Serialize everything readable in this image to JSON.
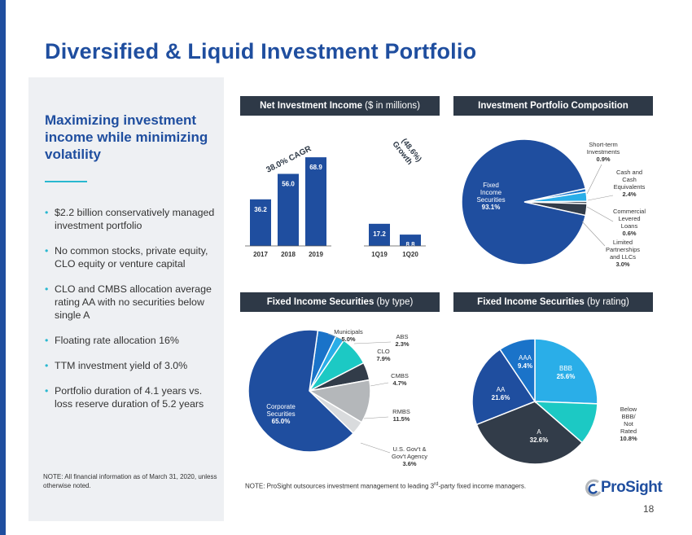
{
  "title": "Diversified & Liquid Investment Portfolio",
  "left_panel": {
    "heading": "Maximizing investment income while minimizing volatility",
    "bullets": [
      "$2.2 billion conservatively managed investment portfolio",
      "No common stocks, private equity, CLO equity or venture capital",
      "CLO and CMBS allocation average rating AA with no securities below single A",
      "Floating rate allocation 16%",
      "TTM investment yield of 3.0%",
      "Portfolio duration of 4.1 years vs. loss reserve duration of 5.2 years"
    ],
    "note": "NOTE:  All financial information as of March 31, 2020, unless otherwise noted."
  },
  "panels": {
    "nii_bold": "Net Investment Income",
    "nii_rest": " ($ in millions)",
    "composition": "Investment Portfolio Composition",
    "fis_type_bold": "Fixed Income  Securities",
    "fis_type_rest": " (by type)",
    "fis_rating_bold": "Fixed Income  Securities",
    "fis_rating_rest": " (by rating)"
  },
  "colors": {
    "navy": "#1f4e9f",
    "dark": "#2e3947",
    "cyan": "#29b8d0",
    "teal": "#1cc9c4",
    "grey": "#b4b7ba",
    "lightgrey": "#d9dbdd",
    "midblue": "#1a73c9",
    "light_blue": "#2aaee8",
    "dark_slate": "#323c49"
  },
  "chart_data": [
    {
      "type": "bar",
      "title": "Net Investment Income ($ in millions)",
      "categories": [
        "2017",
        "2018",
        "2019",
        "1Q19",
        "1Q20"
      ],
      "values": [
        36.2,
        56.0,
        68.9,
        17.2,
        8.8
      ],
      "value_labels": [
        "36.2",
        "56.0",
        "68.9",
        "17.2",
        "8.8"
      ],
      "annotations": [
        "38.0% CAGR",
        "(48.6%) Growth"
      ]
    },
    {
      "type": "pie",
      "title": "Investment Portfolio Composition",
      "slices": [
        {
          "label": "Fixed Income Securities",
          "value": 93.1,
          "pct": "93.1%"
        },
        {
          "label": "Short-term Investments",
          "value": 0.9,
          "pct": "0.9%"
        },
        {
          "label": "Cash and Cash Equivalents",
          "value": 2.4,
          "pct": "2.4%"
        },
        {
          "label": "Commercial Levered Loans",
          "value": 0.6,
          "pct": "0.6%"
        },
        {
          "label": "Limited Partnerships and LLCs",
          "value": 3.0,
          "pct": "3.0%"
        }
      ]
    },
    {
      "type": "pie",
      "title": "Fixed Income Securities (by type)",
      "slices": [
        {
          "label": "Corporate Securities",
          "value": 65.0,
          "pct": "65.0%"
        },
        {
          "label": "Municipals",
          "value": 5.0,
          "pct": "5.0%"
        },
        {
          "label": "ABS",
          "value": 2.3,
          "pct": "2.3%"
        },
        {
          "label": "CLO",
          "value": 7.9,
          "pct": "7.9%"
        },
        {
          "label": "CMBS",
          "value": 4.7,
          "pct": "4.7%"
        },
        {
          "label": "RMBS",
          "value": 11.5,
          "pct": "11.5%"
        },
        {
          "label": "U.S. Gov't & Gov't Agency",
          "value": 3.6,
          "pct": "3.6%"
        }
      ]
    },
    {
      "type": "pie",
      "title": "Fixed Income Securities (by rating)",
      "slices": [
        {
          "label": "BBB",
          "value": 25.6,
          "pct": "25.6%"
        },
        {
          "label": "Below BBB/ Not Rated",
          "value": 10.8,
          "pct": "10.8%"
        },
        {
          "label": "A",
          "value": 32.6,
          "pct": "32.6%"
        },
        {
          "label": "AA",
          "value": 21.6,
          "pct": "21.6%"
        },
        {
          "label": "AAA",
          "value": 9.4,
          "pct": "9.4%"
        }
      ]
    }
  ],
  "bottom_note_pre": "NOTE:  ProSight outsources investment management to leading 3",
  "bottom_note_sup": "rd",
  "bottom_note_post": "-party fixed income managers.",
  "logo_text": "ProSight",
  "page_number": "18"
}
